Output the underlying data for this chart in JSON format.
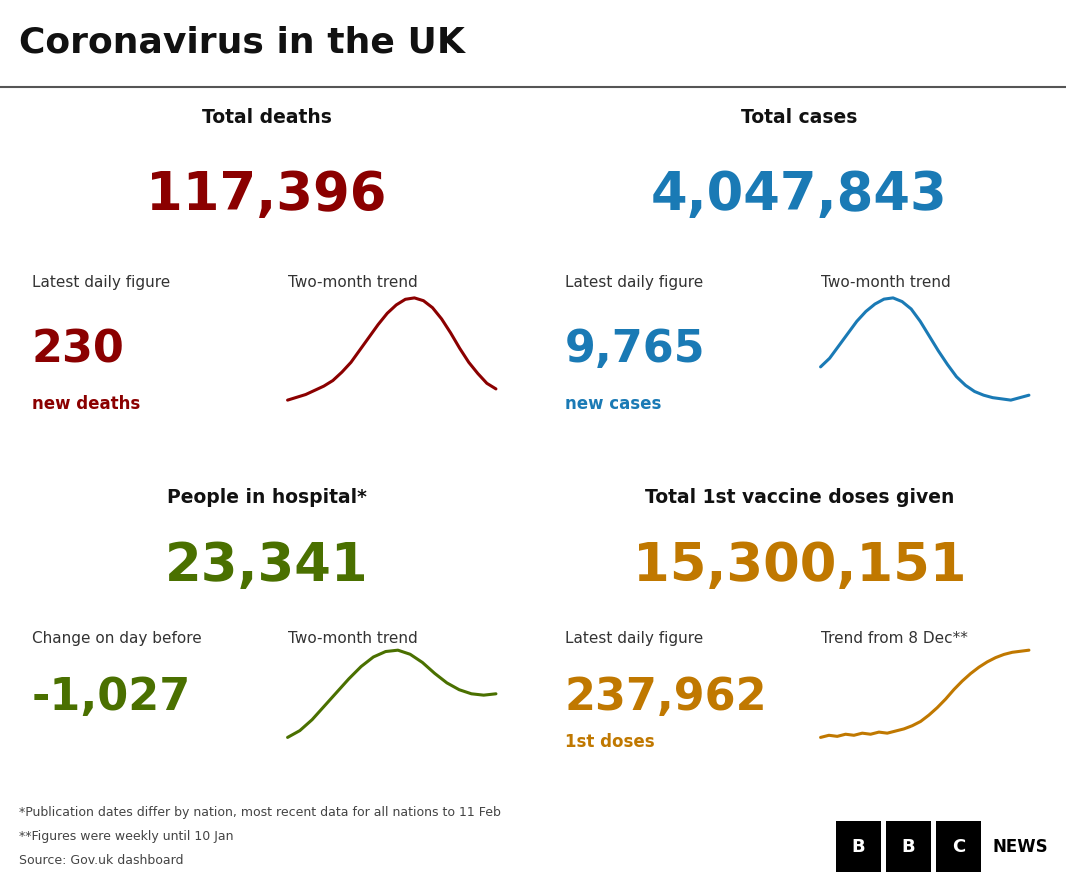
{
  "title": "Coronavirus in the UK",
  "bg_color": "#ffffff",
  "title_color": "#111111",
  "divider_color": "#aaaaaa",
  "quadrants": [
    {
      "header": "Total deaths",
      "header_color": "#111111",
      "big_number": "117,396",
      "big_color": "#8b0000",
      "sub_label1": "Latest daily figure",
      "sub_label2": "Two-month trend",
      "sub_number": "230",
      "sub_number_label": "new deaths",
      "sub_color": "#8b0000",
      "trend_color": "#8b0000",
      "trend_data": [
        0.18,
        0.2,
        0.22,
        0.25,
        0.28,
        0.32,
        0.38,
        0.45,
        0.54,
        0.63,
        0.72,
        0.8,
        0.86,
        0.9,
        0.91,
        0.89,
        0.84,
        0.76,
        0.66,
        0.55,
        0.45,
        0.37,
        0.3,
        0.26
      ]
    },
    {
      "header": "Total cases",
      "header_color": "#111111",
      "big_number": "4,047,843",
      "big_color": "#1a7ab5",
      "sub_label1": "Latest daily figure",
      "sub_label2": "Two-month trend",
      "sub_number": "9,765",
      "sub_number_label": "new cases",
      "sub_color": "#1a7ab5",
      "trend_color": "#1a7ab5",
      "trend_data": [
        0.35,
        0.42,
        0.52,
        0.62,
        0.72,
        0.8,
        0.86,
        0.9,
        0.91,
        0.88,
        0.82,
        0.72,
        0.6,
        0.48,
        0.37,
        0.27,
        0.2,
        0.15,
        0.12,
        0.1,
        0.09,
        0.08,
        0.1,
        0.12
      ]
    },
    {
      "header": "People in hospital*",
      "header_color": "#111111",
      "big_number": "23,341",
      "big_color": "#4a7000",
      "sub_label1": "Change on day before",
      "sub_label2": "Two-month trend",
      "sub_number": "-1,027",
      "sub_number_label": "",
      "sub_color": "#4a7000",
      "trend_color": "#4a7000",
      "trend_data": [
        0.15,
        0.2,
        0.28,
        0.38,
        0.48,
        0.58,
        0.67,
        0.74,
        0.78,
        0.79,
        0.76,
        0.7,
        0.62,
        0.55,
        0.5,
        0.47,
        0.46,
        0.47
      ]
    },
    {
      "header": "Total 1st vaccine doses given",
      "header_color": "#111111",
      "big_number": "15,300,151",
      "big_color": "#c07800",
      "sub_label1": "Latest daily figure",
      "sub_label2": "Trend from 8 Dec**",
      "sub_number": "237,962",
      "sub_number_label": "1st doses",
      "sub_color": "#c07800",
      "trend_color": "#c07800",
      "trend_data": [
        0.05,
        0.07,
        0.06,
        0.08,
        0.07,
        0.09,
        0.08,
        0.1,
        0.09,
        0.11,
        0.13,
        0.16,
        0.2,
        0.26,
        0.33,
        0.41,
        0.5,
        0.58,
        0.65,
        0.71,
        0.76,
        0.8,
        0.83,
        0.85,
        0.86,
        0.87
      ]
    }
  ],
  "footnotes": [
    "*Publication dates differ by nation, most recent data for all nations to 11 Feb",
    "**Figures were weekly until 10 Jan",
    "Source: Gov.uk dashboard"
  ],
  "footnote_color": "#444444"
}
